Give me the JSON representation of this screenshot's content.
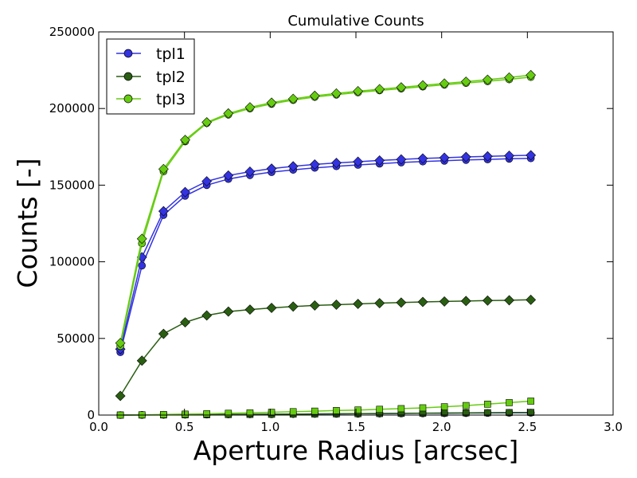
{
  "chart_data": {
    "type": "line",
    "title": "Cumulative Counts",
    "xlabel": "Aperture Radius [arcsec]",
    "ylabel": "Counts [-]",
    "xlim": [
      0.0,
      3.0
    ],
    "ylim": [
      0,
      250000
    ],
    "x_ticks": [
      "0.0",
      "0.5",
      "1.0",
      "1.5",
      "2.0",
      "2.5",
      "3.0"
    ],
    "y_ticks": [
      "0",
      "50000",
      "100000",
      "150000",
      "200000",
      "250000"
    ],
    "grid": false,
    "legend_position": "top-left",
    "x": [
      0.126,
      0.252,
      0.378,
      0.504,
      0.63,
      0.756,
      0.882,
      1.008,
      1.134,
      1.26,
      1.386,
      1.512,
      1.638,
      1.764,
      1.89,
      2.016,
      2.142,
      2.268,
      2.394,
      2.52
    ],
    "series": [
      {
        "name": "tpl1",
        "color": "#3333e0",
        "marker": "circle",
        "values": [
          41000,
          97500,
          130500,
          143000,
          150000,
          154000,
          156500,
          158500,
          160000,
          161300,
          162300,
          163200,
          164000,
          164800,
          165400,
          165900,
          166400,
          166800,
          167200,
          167500
        ]
      },
      {
        "name": "tpl1",
        "color": "#3333e0",
        "marker": "diamond",
        "values": [
          43000,
          103000,
          133000,
          145500,
          152500,
          156300,
          158800,
          160800,
          162300,
          163500,
          164500,
          165300,
          166100,
          166800,
          167400,
          167900,
          168400,
          168800,
          169200,
          169500
        ]
      },
      {
        "name": "tpl1",
        "color": "#3333e0",
        "marker": "circle",
        "values": [
          0,
          80,
          160,
          240,
          320,
          400,
          480,
          560,
          640,
          720,
          800,
          880,
          960,
          1040,
          1120,
          1200,
          1280,
          1360,
          1440,
          1520
        ]
      },
      {
        "name": "tpl2",
        "color": "#2a5e12",
        "marker": "diamond",
        "values": [
          12500,
          35500,
          53000,
          60500,
          65000,
          67500,
          68800,
          69900,
          70800,
          71500,
          72000,
          72500,
          73000,
          73400,
          73800,
          74100,
          74400,
          74700,
          74900,
          75200
        ]
      },
      {
        "name": "tpl2",
        "color": "#2a5e12",
        "marker": "square",
        "values": [
          0,
          50,
          120,
          200,
          280,
          360,
          450,
          540,
          640,
          740,
          840,
          940,
          1040,
          1140,
          1240,
          1340,
          1440,
          1540,
          1640,
          1740
        ]
      },
      {
        "name": "tpl3",
        "color": "#66cc11",
        "marker": "circle",
        "values": [
          45000,
          112000,
          159000,
          178500,
          190500,
          196000,
          200000,
          203000,
          205500,
          207500,
          209000,
          210500,
          211800,
          213000,
          214300,
          215500,
          216600,
          217800,
          219000,
          220500
        ]
      },
      {
        "name": "tpl3",
        "color": "#66cc11",
        "marker": "diamond",
        "values": [
          47000,
          115000,
          160500,
          179500,
          191000,
          196800,
          200800,
          203800,
          206300,
          208300,
          209800,
          211300,
          212600,
          213800,
          215100,
          216300,
          217500,
          218800,
          220200,
          221800
        ]
      },
      {
        "name": "tpl3",
        "color": "#66cc11",
        "marker": "square",
        "values": [
          0,
          150,
          350,
          600,
          850,
          1150,
          1450,
          1800,
          2200,
          2550,
          2950,
          3300,
          3750,
          4200,
          4700,
          5400,
          6200,
          7100,
          8100,
          9100
        ]
      }
    ],
    "legend": [
      {
        "label": "tpl1",
        "color": "#3333e0"
      },
      {
        "label": "tpl2",
        "color": "#2a5e12"
      },
      {
        "label": "tpl3",
        "color": "#66cc11"
      }
    ]
  }
}
